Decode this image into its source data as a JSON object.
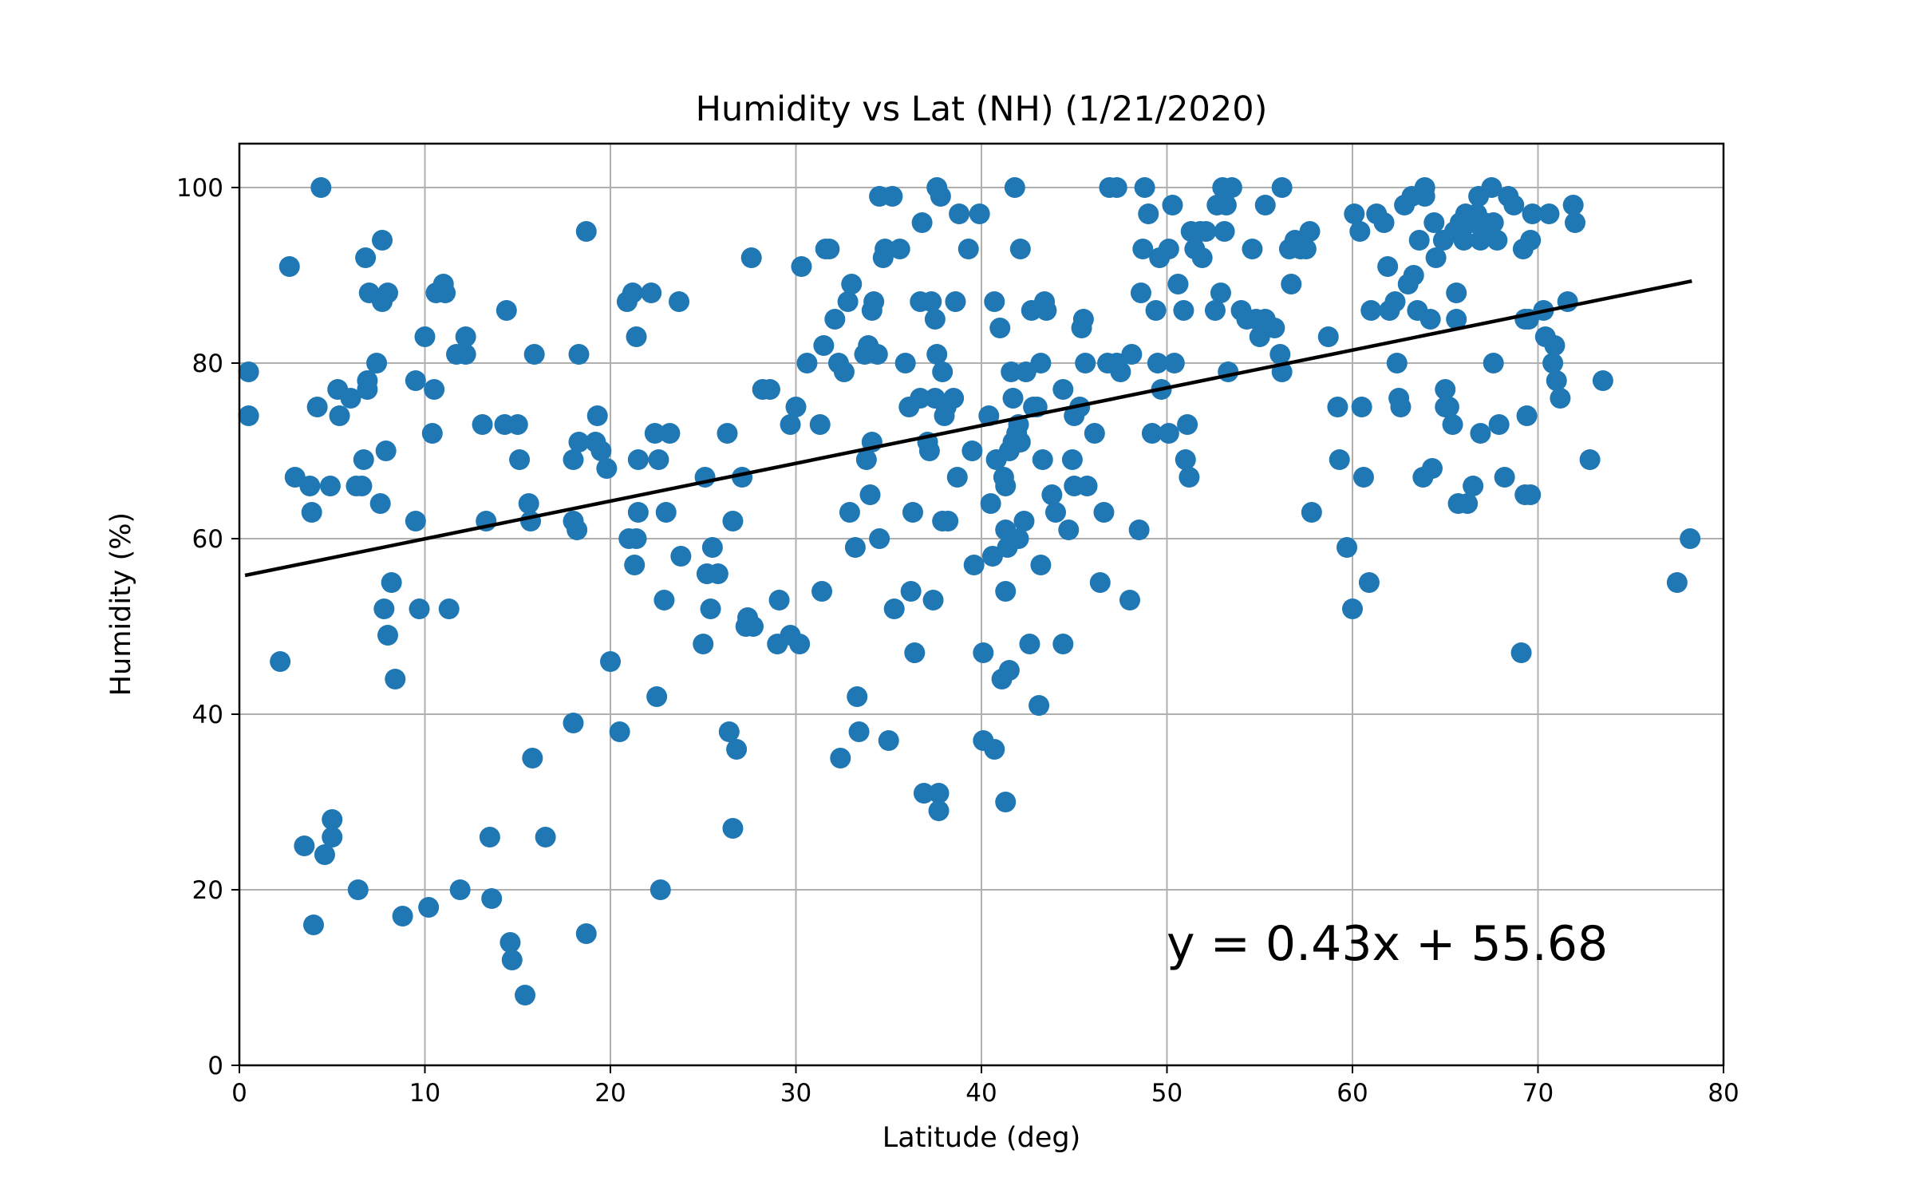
{
  "chart_data": {
    "type": "scatter",
    "title": "Humidity vs Lat (NH) (1/21/2020)",
    "xlabel": "Latitude (deg)",
    "ylabel": "Humidity (%)",
    "xlim": [
      0,
      80
    ],
    "ylim": [
      0,
      105
    ],
    "xticks": [
      0,
      10,
      20,
      30,
      40,
      50,
      60,
      70,
      80
    ],
    "yticks": [
      0,
      20,
      40,
      60,
      80,
      100
    ],
    "grid": true,
    "point_color": "#1f77b4",
    "line_color": "#000000",
    "regression": {
      "slope": 0.43,
      "intercept": 55.68,
      "x_range": [
        0.4,
        78.2
      ]
    },
    "equation_label": "y = 0.43x + 55.68",
    "points": [
      [
        0.5,
        79
      ],
      [
        0.5,
        74
      ],
      [
        2.2,
        46
      ],
      [
        2.7,
        91
      ],
      [
        3.0,
        67
      ],
      [
        3.5,
        25
      ],
      [
        3.8,
        66
      ],
      [
        3.9,
        63
      ],
      [
        4.0,
        16
      ],
      [
        4.2,
        75
      ],
      [
        4.4,
        100
      ],
      [
        4.6,
        24
      ],
      [
        4.9,
        66
      ],
      [
        5.0,
        26
      ],
      [
        5.0,
        28
      ],
      [
        5.3,
        77
      ],
      [
        5.4,
        74
      ],
      [
        6.0,
        76
      ],
      [
        6.3,
        66
      ],
      [
        6.4,
        20
      ],
      [
        6.6,
        66
      ],
      [
        6.7,
        69
      ],
      [
        6.8,
        92
      ],
      [
        6.9,
        77
      ],
      [
        6.9,
        78
      ],
      [
        7.0,
        88
      ],
      [
        7.4,
        80
      ],
      [
        7.6,
        64
      ],
      [
        7.7,
        94
      ],
      [
        7.7,
        87
      ],
      [
        7.8,
        52
      ],
      [
        7.9,
        70
      ],
      [
        8.0,
        49
      ],
      [
        8.0,
        88
      ],
      [
        8.2,
        55
      ],
      [
        8.4,
        44
      ],
      [
        8.8,
        17
      ],
      [
        9.5,
        62
      ],
      [
        9.5,
        78
      ],
      [
        9.7,
        52
      ],
      [
        10.0,
        83
      ],
      [
        10.2,
        18
      ],
      [
        10.4,
        72
      ],
      [
        10.5,
        77
      ],
      [
        10.6,
        88
      ],
      [
        11.0,
        89
      ],
      [
        11.1,
        88
      ],
      [
        11.3,
        52
      ],
      [
        11.7,
        81
      ],
      [
        11.9,
        20
      ],
      [
        12.2,
        83
      ],
      [
        12.2,
        81
      ],
      [
        13.1,
        73
      ],
      [
        13.3,
        62
      ],
      [
        13.5,
        26
      ],
      [
        13.6,
        19
      ],
      [
        14.3,
        73
      ],
      [
        14.4,
        86
      ],
      [
        14.6,
        14
      ],
      [
        14.7,
        12
      ],
      [
        15.0,
        73
      ],
      [
        15.1,
        69
      ],
      [
        15.4,
        8
      ],
      [
        15.6,
        64
      ],
      [
        15.7,
        62
      ],
      [
        15.8,
        35
      ],
      [
        15.9,
        81
      ],
      [
        16.5,
        26
      ],
      [
        18.0,
        69
      ],
      [
        18.0,
        62
      ],
      [
        18.0,
        39
      ],
      [
        18.2,
        61
      ],
      [
        18.3,
        81
      ],
      [
        18.3,
        71
      ],
      [
        18.7,
        95
      ],
      [
        18.7,
        15
      ],
      [
        19.2,
        71
      ],
      [
        19.3,
        74
      ],
      [
        19.5,
        70
      ],
      [
        19.8,
        68
      ],
      [
        20.0,
        46
      ],
      [
        20.5,
        38
      ],
      [
        20.9,
        87
      ],
      [
        21.0,
        60
      ],
      [
        21.2,
        88
      ],
      [
        21.3,
        57
      ],
      [
        21.4,
        83
      ],
      [
        21.4,
        60
      ],
      [
        21.5,
        69
      ],
      [
        21.5,
        63
      ],
      [
        22.2,
        88
      ],
      [
        22.4,
        72
      ],
      [
        22.5,
        42
      ],
      [
        22.6,
        69
      ],
      [
        22.7,
        20
      ],
      [
        22.9,
        53
      ],
      [
        23.0,
        63
      ],
      [
        23.2,
        72
      ],
      [
        23.7,
        87
      ],
      [
        23.8,
        58
      ],
      [
        25.0,
        48
      ],
      [
        25.1,
        67
      ],
      [
        25.2,
        56
      ],
      [
        25.4,
        52
      ],
      [
        25.5,
        59
      ],
      [
        25.8,
        56
      ],
      [
        26.3,
        72
      ],
      [
        26.4,
        38
      ],
      [
        26.6,
        62
      ],
      [
        26.6,
        27
      ],
      [
        26.8,
        36
      ],
      [
        27.1,
        67
      ],
      [
        27.3,
        50
      ],
      [
        27.4,
        51
      ],
      [
        27.6,
        92
      ],
      [
        27.7,
        50
      ],
      [
        28.2,
        77
      ],
      [
        28.6,
        77
      ],
      [
        29.0,
        48
      ],
      [
        29.1,
        53
      ],
      [
        29.7,
        49
      ],
      [
        29.7,
        73
      ],
      [
        30.0,
        75
      ],
      [
        30.2,
        48
      ],
      [
        30.3,
        91
      ],
      [
        30.6,
        80
      ],
      [
        31.3,
        73
      ],
      [
        31.4,
        54
      ],
      [
        31.5,
        82
      ],
      [
        31.6,
        93
      ],
      [
        31.8,
        93
      ],
      [
        32.1,
        85
      ],
      [
        32.3,
        80
      ],
      [
        32.4,
        35
      ],
      [
        32.6,
        79
      ],
      [
        32.8,
        87
      ],
      [
        32.9,
        63
      ],
      [
        33.0,
        89
      ],
      [
        33.2,
        59
      ],
      [
        33.3,
        42
      ],
      [
        33.4,
        38
      ],
      [
        33.7,
        81
      ],
      [
        33.8,
        69
      ],
      [
        33.9,
        82
      ],
      [
        34.0,
        65
      ],
      [
        34.1,
        71
      ],
      [
        34.1,
        86
      ],
      [
        34.2,
        87
      ],
      [
        34.4,
        81
      ],
      [
        34.5,
        99
      ],
      [
        34.5,
        60
      ],
      [
        34.7,
        92
      ],
      [
        34.8,
        93
      ],
      [
        35.0,
        37
      ],
      [
        35.2,
        99
      ],
      [
        35.3,
        52
      ],
      [
        35.6,
        93
      ],
      [
        35.9,
        80
      ],
      [
        36.1,
        75
      ],
      [
        36.2,
        54
      ],
      [
        36.3,
        63
      ],
      [
        36.4,
        47
      ],
      [
        36.7,
        76
      ],
      [
        36.7,
        87
      ],
      [
        36.8,
        96
      ],
      [
        36.9,
        31
      ],
      [
        37.1,
        71
      ],
      [
        37.2,
        70
      ],
      [
        37.3,
        87
      ],
      [
        37.4,
        53
      ],
      [
        37.5,
        85
      ],
      [
        37.5,
        76
      ],
      [
        37.6,
        100
      ],
      [
        37.6,
        81
      ],
      [
        37.7,
        31
      ],
      [
        37.7,
        29
      ],
      [
        37.8,
        99
      ],
      [
        37.9,
        79
      ],
      [
        37.9,
        62
      ],
      [
        38.0,
        74
      ],
      [
        38.1,
        75
      ],
      [
        38.2,
        62
      ],
      [
        38.5,
        76
      ],
      [
        38.6,
        87
      ],
      [
        38.7,
        67
      ],
      [
        38.8,
        97
      ],
      [
        39.3,
        93
      ],
      [
        39.5,
        70
      ],
      [
        39.6,
        57
      ],
      [
        39.9,
        97
      ],
      [
        40.1,
        47
      ],
      [
        40.1,
        37
      ],
      [
        40.4,
        74
      ],
      [
        40.5,
        64
      ],
      [
        40.6,
        58
      ],
      [
        40.7,
        36
      ],
      [
        40.7,
        87
      ],
      [
        40.8,
        69
      ],
      [
        41.0,
        84
      ],
      [
        41.1,
        44
      ],
      [
        41.2,
        67
      ],
      [
        41.3,
        66
      ],
      [
        41.3,
        30
      ],
      [
        41.3,
        61
      ],
      [
        41.3,
        54
      ],
      [
        41.4,
        59
      ],
      [
        41.5,
        70
      ],
      [
        41.5,
        45
      ],
      [
        41.6,
        79
      ],
      [
        41.7,
        71
      ],
      [
        41.7,
        76
      ],
      [
        41.8,
        100
      ],
      [
        41.9,
        72
      ],
      [
        42.0,
        73
      ],
      [
        42.0,
        60
      ],
      [
        42.1,
        93
      ],
      [
        42.1,
        71
      ],
      [
        42.3,
        62
      ],
      [
        42.4,
        79
      ],
      [
        42.6,
        48
      ],
      [
        42.7,
        86
      ],
      [
        42.8,
        75
      ],
      [
        43.0,
        75
      ],
      [
        43.1,
        41
      ],
      [
        43.2,
        80
      ],
      [
        43.2,
        57
      ],
      [
        43.3,
        69
      ],
      [
        43.4,
        87
      ],
      [
        43.5,
        86
      ],
      [
        43.8,
        65
      ],
      [
        44.0,
        63
      ],
      [
        44.4,
        77
      ],
      [
        44.4,
        48
      ],
      [
        44.7,
        61
      ],
      [
        44.9,
        69
      ],
      [
        45.0,
        74
      ],
      [
        45.0,
        66
      ],
      [
        45.3,
        75
      ],
      [
        45.4,
        84
      ],
      [
        45.5,
        85
      ],
      [
        45.6,
        80
      ],
      [
        45.7,
        66
      ],
      [
        46.1,
        72
      ],
      [
        46.4,
        55
      ],
      [
        46.6,
        63
      ],
      [
        46.8,
        80
      ],
      [
        46.9,
        100
      ],
      [
        47.3,
        100
      ],
      [
        47.3,
        80
      ],
      [
        47.5,
        79
      ],
      [
        48.0,
        53
      ],
      [
        48.1,
        81
      ],
      [
        48.5,
        61
      ],
      [
        48.6,
        88
      ],
      [
        48.7,
        93
      ],
      [
        48.8,
        100
      ],
      [
        49.0,
        97
      ],
      [
        49.2,
        72
      ],
      [
        49.4,
        86
      ],
      [
        49.5,
        80
      ],
      [
        49.6,
        92
      ],
      [
        49.7,
        77
      ],
      [
        50.1,
        93
      ],
      [
        50.1,
        72
      ],
      [
        50.3,
        98
      ],
      [
        50.4,
        80
      ],
      [
        50.6,
        89
      ],
      [
        50.9,
        86
      ],
      [
        51.0,
        69
      ],
      [
        51.1,
        73
      ],
      [
        51.2,
        67
      ],
      [
        51.3,
        95
      ],
      [
        51.5,
        93
      ],
      [
        51.8,
        95
      ],
      [
        51.9,
        92
      ],
      [
        52.1,
        95
      ],
      [
        52.6,
        86
      ],
      [
        52.7,
        98
      ],
      [
        52.9,
        88
      ],
      [
        53.0,
        100
      ],
      [
        53.1,
        95
      ],
      [
        53.2,
        98
      ],
      [
        53.3,
        79
      ],
      [
        53.5,
        100
      ],
      [
        54.0,
        86
      ],
      [
        54.3,
        85
      ],
      [
        54.6,
        93
      ],
      [
        54.8,
        85
      ],
      [
        55.0,
        83
      ],
      [
        55.3,
        85
      ],
      [
        55.3,
        98
      ],
      [
        55.8,
        84
      ],
      [
        56.1,
        81
      ],
      [
        56.2,
        100
      ],
      [
        56.2,
        79
      ],
      [
        56.6,
        93
      ],
      [
        56.7,
        89
      ],
      [
        56.9,
        94
      ],
      [
        57.2,
        93
      ],
      [
        57.5,
        93
      ],
      [
        57.7,
        95
      ],
      [
        57.8,
        63
      ],
      [
        58.7,
        83
      ],
      [
        59.2,
        75
      ],
      [
        59.3,
        69
      ],
      [
        59.7,
        59
      ],
      [
        60.0,
        52
      ],
      [
        60.1,
        97
      ],
      [
        60.4,
        95
      ],
      [
        60.5,
        75
      ],
      [
        60.6,
        67
      ],
      [
        60.9,
        55
      ],
      [
        61.0,
        86
      ],
      [
        61.3,
        97
      ],
      [
        61.7,
        96
      ],
      [
        61.9,
        91
      ],
      [
        62.0,
        86
      ],
      [
        62.3,
        87
      ],
      [
        62.4,
        80
      ],
      [
        62.5,
        76
      ],
      [
        62.6,
        75
      ],
      [
        62.8,
        98
      ],
      [
        63.0,
        89
      ],
      [
        63.2,
        99
      ],
      [
        63.3,
        90
      ],
      [
        63.5,
        86
      ],
      [
        63.6,
        94
      ],
      [
        63.8,
        67
      ],
      [
        63.9,
        99
      ],
      [
        63.9,
        100
      ],
      [
        64.2,
        85
      ],
      [
        64.3,
        68
      ],
      [
        64.4,
        96
      ],
      [
        64.5,
        92
      ],
      [
        64.9,
        94
      ],
      [
        65.0,
        77
      ],
      [
        65.0,
        75
      ],
      [
        65.2,
        75
      ],
      [
        65.4,
        73
      ],
      [
        65.5,
        95
      ],
      [
        65.6,
        88
      ],
      [
        65.6,
        85
      ],
      [
        65.7,
        64
      ],
      [
        65.8,
        96
      ],
      [
        66.0,
        94
      ],
      [
        66.1,
        97
      ],
      [
        66.2,
        64
      ],
      [
        66.4,
        96
      ],
      [
        66.5,
        66
      ],
      [
        66.7,
        97
      ],
      [
        66.8,
        99
      ],
      [
        66.9,
        94
      ],
      [
        66.9,
        72
      ],
      [
        67.1,
        96
      ],
      [
        67.3,
        95
      ],
      [
        67.5,
        100
      ],
      [
        67.6,
        80
      ],
      [
        67.6,
        96
      ],
      [
        67.8,
        94
      ],
      [
        67.9,
        73
      ],
      [
        68.2,
        67
      ],
      [
        68.4,
        99
      ],
      [
        68.7,
        98
      ],
      [
        69.1,
        47
      ],
      [
        69.2,
        93
      ],
      [
        69.3,
        65
      ],
      [
        69.3,
        85
      ],
      [
        69.4,
        74
      ],
      [
        69.5,
        85
      ],
      [
        69.6,
        94
      ],
      [
        69.6,
        65
      ],
      [
        69.7,
        97
      ],
      [
        70.3,
        86
      ],
      [
        70.4,
        83
      ],
      [
        70.6,
        97
      ],
      [
        70.8,
        80
      ],
      [
        70.9,
        82
      ],
      [
        71.0,
        78
      ],
      [
        71.2,
        76
      ],
      [
        71.6,
        87
      ],
      [
        71.9,
        98
      ],
      [
        72.0,
        96
      ],
      [
        72.8,
        69
      ],
      [
        73.5,
        78
      ],
      [
        77.5,
        55
      ],
      [
        78.2,
        60
      ]
    ]
  }
}
